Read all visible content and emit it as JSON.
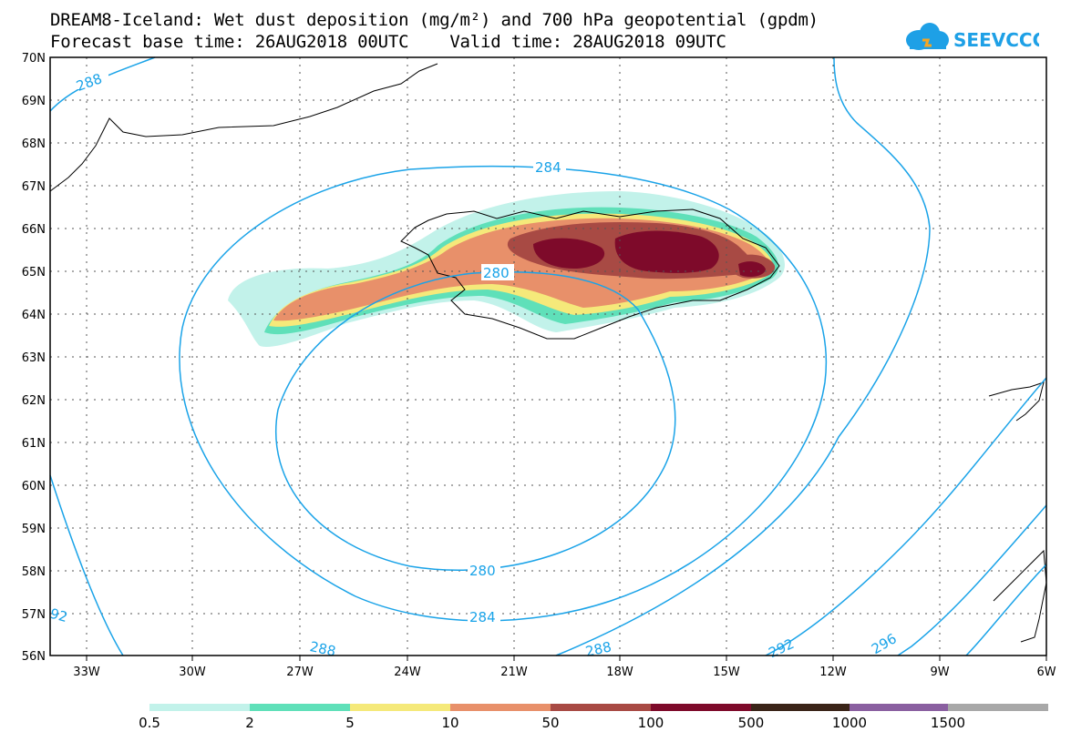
{
  "header": {
    "title_line1": "DREAM8-Iceland: Wet dust deposition (mg/m²) and 700 hPa geopotential (gpdm)",
    "title_line2": "Forecast base time: 26AUG2018 00UTC    Valid time: 28AUG2018 09UTC",
    "logo_text": "SEEVCCC"
  },
  "map": {
    "lat_labels": [
      "70N",
      "69N",
      "68N",
      "67N",
      "66N",
      "65N",
      "64N",
      "63N",
      "62N",
      "61N",
      "60N",
      "59N",
      "58N",
      "57N",
      "56N"
    ],
    "lon_labels": [
      "33W",
      "30W",
      "27W",
      "24W",
      "21W",
      "18W",
      "15W",
      "12W",
      "9W",
      "6W"
    ],
    "contour_labels": [
      "288",
      "284",
      "280",
      "280",
      "284",
      "288",
      "288",
      "292",
      "296",
      "92"
    ],
    "contour_color": "#1aa3e8"
  },
  "legend": {
    "colors": [
      "#c2f2ea",
      "#5fe0b9",
      "#f5e97a",
      "#e8906a",
      "#a84a44",
      "#7e0a2a",
      "#3a2418",
      "#8a5fa0",
      "#a8a8a8"
    ],
    "labels": [
      "0.5",
      "2",
      "5",
      "10",
      "50",
      "100",
      "500",
      "1000",
      "1500"
    ]
  }
}
